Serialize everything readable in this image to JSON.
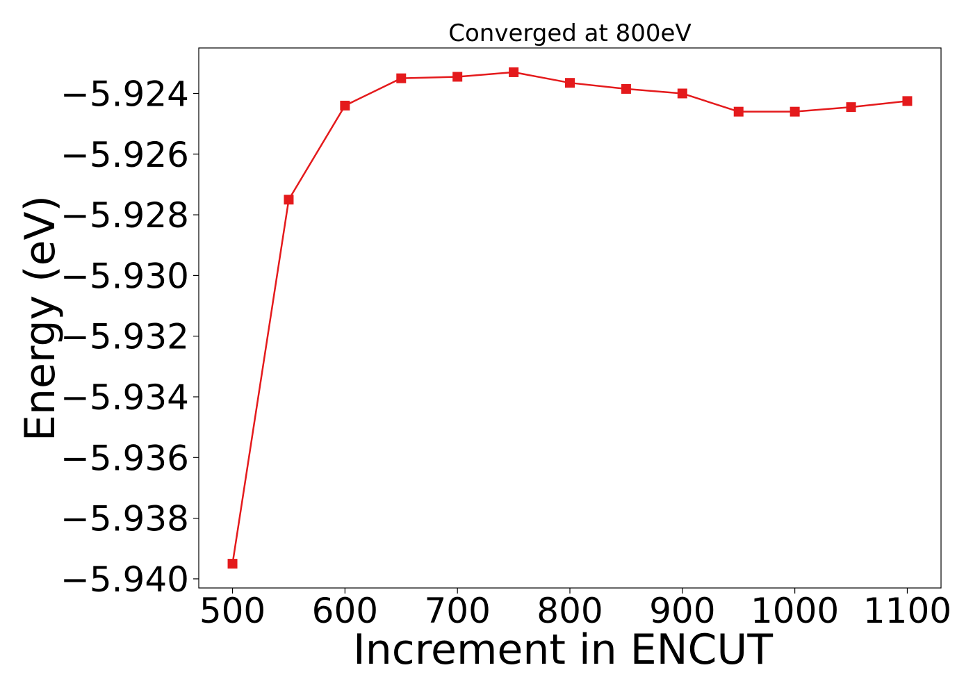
{
  "chart_data": {
    "type": "line",
    "title": "Converged at 800eV",
    "xlabel": "Increment in ENCUT",
    "ylabel": "Energy (eV)",
    "x": [
      500,
      550,
      600,
      650,
      700,
      750,
      800,
      850,
      900,
      950,
      1000,
      1050,
      1100
    ],
    "series": [
      {
        "values": [
          -5.9395,
          -5.9275,
          -5.9244,
          -5.9235,
          -5.92345,
          -5.9233,
          -5.92365,
          -5.92385,
          -5.924,
          -5.9246,
          -5.9246,
          -5.92445,
          -5.92425
        ],
        "color": "#e41a1c",
        "marker": "square"
      }
    ],
    "xlim": [
      470,
      1130
    ],
    "ylim": [
      -5.9403,
      -5.9225
    ],
    "xticks": [
      500,
      600,
      700,
      800,
      900,
      1000,
      1100
    ],
    "xtick_labels": [
      "500",
      "600",
      "700",
      "800",
      "900",
      "1000",
      "1100"
    ],
    "yticks": [
      -5.924,
      -5.926,
      -5.928,
      -5.93,
      -5.932,
      -5.934,
      -5.936,
      -5.938,
      -5.94
    ],
    "ytick_labels": [
      "−5.924",
      "−5.926",
      "−5.928",
      "−5.930",
      "−5.932",
      "−5.934",
      "−5.936",
      "−5.938",
      "−5.940"
    ],
    "grid": false,
    "legend": false
  }
}
